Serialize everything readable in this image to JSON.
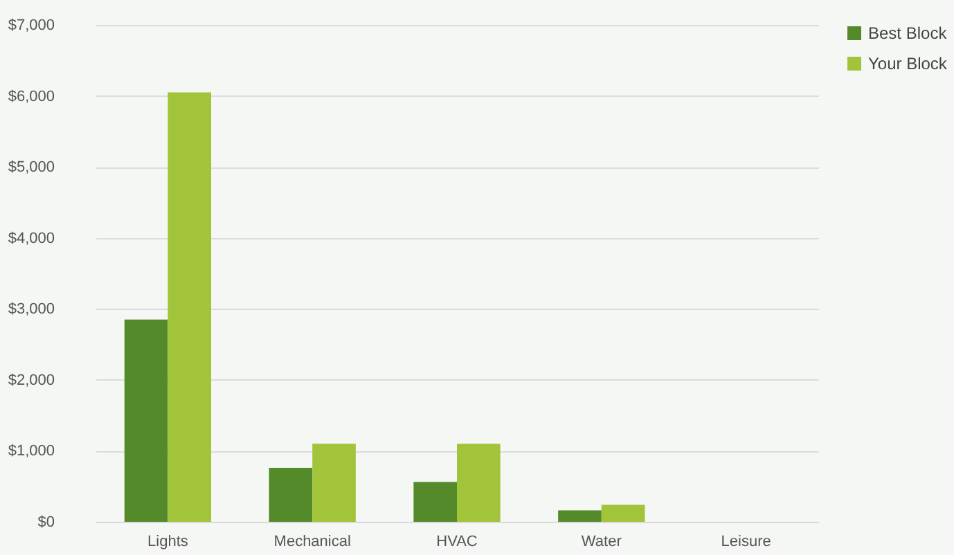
{
  "chart_data": {
    "type": "bar",
    "categories": [
      "Lights",
      "Mechanical",
      "HVAC",
      "Water",
      "Leisure"
    ],
    "series": [
      {
        "name": "Best Block",
        "color": "#548a2a",
        "values": [
          2850,
          760,
          560,
          160,
          0
        ]
      },
      {
        "name": "Your Block",
        "color": "#a2c43a",
        "values": [
          6050,
          1100,
          1100,
          240,
          0
        ]
      }
    ],
    "ylim": [
      0,
      7000
    ],
    "yticks": [
      {
        "value": 0,
        "label": "$0"
      },
      {
        "value": 1000,
        "label": "$1,000"
      },
      {
        "value": 2000,
        "label": "$2,000"
      },
      {
        "value": 3000,
        "label": "$3,000"
      },
      {
        "value": 4000,
        "label": "$4,000"
      },
      {
        "value": 5000,
        "label": "$5,000"
      },
      {
        "value": 6000,
        "label": "$6,000"
      },
      {
        "value": 7000,
        "label": "$7,000"
      }
    ],
    "grid": "y",
    "legend": "top right"
  }
}
